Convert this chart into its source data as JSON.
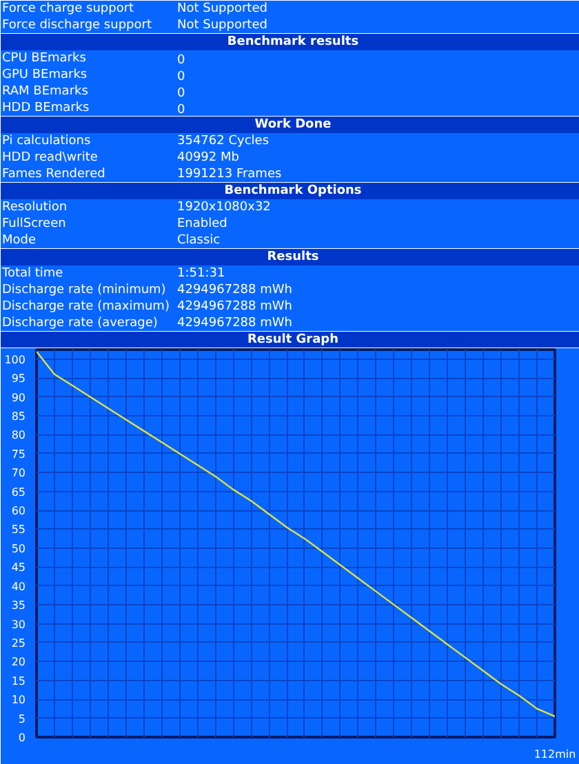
{
  "chart_data": [
    {
      "type": "other",
      "annotations": [
        "Force charge support",
        "Not Supported",
        "Force discharge support",
        "Not Supported"
      ]
    },
    {
      "type": "other",
      "title": "Benchmark results",
      "annotations": [
        "CPU BEmarks",
        "0",
        "GPU BEmarks",
        "0",
        "RAM BEmarks",
        "0",
        "HDD BEmarks",
        "0"
      ]
    },
    {
      "type": "other",
      "title": "Work Done",
      "annotations": [
        "Pi calculations",
        "354762 Cycles",
        "HDD read\\write",
        "40992 Mb",
        "Fames Rendered",
        "1991213 Frames"
      ]
    },
    {
      "type": "other",
      "title": "Benchmark Options",
      "annotations": [
        "Resolution",
        "1920x1080x32",
        "FullScreen",
        "Enabled",
        "Mode",
        "Classic"
      ]
    },
    {
      "type": "other",
      "title": "Results",
      "annotations": [
        "Total time",
        "1:51:31",
        "Discharge rate (minimum)",
        "4294967288 mWh",
        "Discharge rate (maximum)",
        "4294967288 mWh",
        "Discharge rate (average)",
        "4294967288 mWh"
      ]
    },
    {
      "type": "line",
      "title": "Result Graph",
      "categories": [
        null,
        null,
        null,
        null,
        null,
        null,
        null,
        null,
        null,
        null,
        null,
        null,
        null,
        null,
        null,
        null,
        null,
        null,
        null,
        null,
        null,
        null,
        null,
        null,
        null,
        null,
        null,
        null,
        null,
        "112min"
      ],
      "values": [
        102,
        96,
        93,
        90,
        87,
        84,
        81,
        78,
        75,
        72,
        69,
        65.5,
        62.5,
        59,
        55.5,
        52.5,
        49,
        45.5,
        42,
        38.5,
        35,
        31.5,
        28,
        24.5,
        21,
        17.5,
        14,
        11,
        7.5,
        5.5
      ],
      "color": "#e0e040",
      "ylim": [
        0,
        102.5
      ],
      "yticks": [
        0,
        5,
        10,
        15,
        20,
        25,
        30,
        35,
        40,
        45,
        50,
        55,
        60,
        65,
        70,
        75,
        80,
        85,
        90,
        95,
        100
      ],
      "grid": true
    }
  ]
}
